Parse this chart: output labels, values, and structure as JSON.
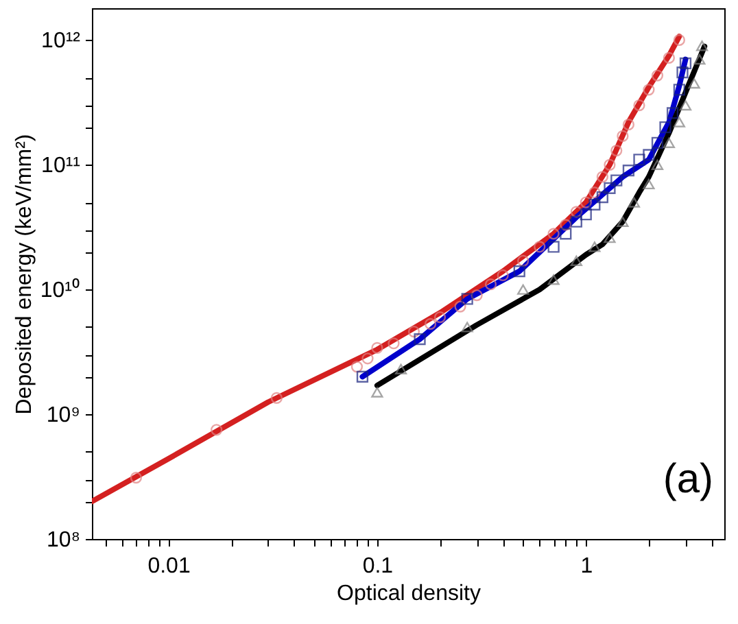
{
  "chart_data": {
    "type": "scatter",
    "xlabel": "Optical density",
    "ylabel": "Deposited energy (keV/mm²)",
    "log": "xy",
    "grid": false,
    "xlim": [
      0.0043,
      4.6
    ],
    "ylim": [
      100000000.0,
      1800000000000.0
    ],
    "xticks": [
      {
        "value": 0.005,
        "label": null
      },
      {
        "value": 0.006,
        "label": null
      },
      {
        "value": 0.007,
        "label": null
      },
      {
        "value": 0.008,
        "label": null
      },
      {
        "value": 0.009,
        "label": null
      },
      {
        "value": 0.01,
        "label": "0.01"
      },
      {
        "value": 0.02,
        "label": null
      },
      {
        "value": 0.03,
        "label": null
      },
      {
        "value": 0.04,
        "label": null
      },
      {
        "value": 0.05,
        "label": null
      },
      {
        "value": 0.06,
        "label": null
      },
      {
        "value": 0.07,
        "label": null
      },
      {
        "value": 0.08,
        "label": null
      },
      {
        "value": 0.09,
        "label": null
      },
      {
        "value": 0.1,
        "label": "0.1"
      },
      {
        "value": 0.2,
        "label": null
      },
      {
        "value": 0.3,
        "label": null
      },
      {
        "value": 0.4,
        "label": null
      },
      {
        "value": 0.5,
        "label": null
      },
      {
        "value": 0.6,
        "label": null
      },
      {
        "value": 0.7,
        "label": null
      },
      {
        "value": 0.8,
        "label": null
      },
      {
        "value": 0.9,
        "label": null
      },
      {
        "value": 1,
        "label": "1"
      },
      {
        "value": 2,
        "label": null
      },
      {
        "value": 3,
        "label": null
      },
      {
        "value": 4,
        "label": null
      }
    ],
    "yticks": [
      {
        "value": 100000000.0,
        "label": "10⁸"
      },
      {
        "value": 200000000.0,
        "label": null
      },
      {
        "value": 300000000.0,
        "label": null
      },
      {
        "value": 500000000.0,
        "label": null
      },
      {
        "value": 1000000000.0,
        "label": "10⁹"
      },
      {
        "value": 2000000000.0,
        "label": null
      },
      {
        "value": 3000000000.0,
        "label": null
      },
      {
        "value": 5000000000.0,
        "label": null
      },
      {
        "value": 10000000000.0,
        "label": "10¹⁰"
      },
      {
        "value": 20000000000.0,
        "label": null
      },
      {
        "value": 30000000000.0,
        "label": null
      },
      {
        "value": 50000000000.0,
        "label": null
      },
      {
        "value": 100000000000.0,
        "label": "10¹¹"
      },
      {
        "value": 200000000000.0,
        "label": null
      },
      {
        "value": 300000000000.0,
        "label": null
      },
      {
        "value": 500000000000.0,
        "label": null
      },
      {
        "value": 1000000000000.0,
        "label": "10¹²"
      }
    ],
    "annotations": [
      "(a)"
    ],
    "series": [
      {
        "type": "scatter",
        "marker": "circle",
        "color": "#e08080",
        "x": [
          0.007,
          0.017,
          0.033,
          0.08,
          0.09,
          0.1,
          0.12,
          0.15,
          0.18,
          0.2,
          0.25,
          0.3,
          0.35,
          0.4,
          0.5,
          0.6,
          0.7,
          0.8,
          0.9,
          1.0,
          1.1,
          1.2,
          1.3,
          1.4,
          1.5,
          1.6,
          1.8,
          2.0,
          2.2,
          2.5,
          2.8
        ],
        "values": [
          310000000.0,
          750000000.0,
          1350000000.0,
          2400000000.0,
          2800000000.0,
          3400000000.0,
          3700000000.0,
          4600000000.0,
          5300000000.0,
          6000000000.0,
          7300000000.0,
          9000000000.0,
          11000000000.0,
          13000000000.0,
          17000000000.0,
          22000000000.0,
          28000000000.0,
          33000000000.0,
          42000000000.0,
          50000000000.0,
          60000000000.0,
          80000000000.0,
          100000000000.0,
          130000000000.0,
          170000000000.0,
          210000000000.0,
          300000000000.0,
          400000000000.0,
          520000000000.0,
          720000000000.0,
          1000000000000.0
        ]
      },
      {
        "type": "line",
        "marker": "none",
        "color": "#d42020",
        "x": [
          0.0043,
          0.01,
          0.03,
          0.1,
          0.2,
          0.4,
          0.7,
          1,
          1.3,
          1.6,
          2,
          2.5,
          2.8
        ],
        "values": [
          200000000.0,
          440000000.0,
          1250000000.0,
          3300000000.0,
          6500000000.0,
          14000000000.0,
          28000000000.0,
          50000000000.0,
          100000000000.0,
          220000000000.0,
          420000000000.0,
          750000000000.0,
          1070000000000.0
        ]
      },
      {
        "type": "scatter",
        "marker": "square",
        "color": "#1a237e",
        "x": [
          0.085,
          0.16,
          0.27,
          0.48,
          0.7,
          0.8,
          0.9,
          1.0,
          1.1,
          1.2,
          1.3,
          1.4,
          1.6,
          1.8,
          2.0,
          2.2,
          2.4,
          2.6,
          2.8,
          2.9,
          3.0
        ],
        "values": [
          2000000000.0,
          4000000000.0,
          8400000000.0,
          14000000000.0,
          22000000000.0,
          28000000000.0,
          35000000000.0,
          40000000000.0,
          48000000000.0,
          55000000000.0,
          65000000000.0,
          75000000000.0,
          90000000000.0,
          110000000000.0,
          120000000000.0,
          150000000000.0,
          200000000000.0,
          260000000000.0,
          400000000000.0,
          550000000000.0,
          650000000000.0
        ]
      },
      {
        "type": "line",
        "marker": "none",
        "color": "#0000cc",
        "x": [
          0.085,
          0.16,
          0.27,
          0.48,
          0.9,
          1.5,
          2,
          2.5,
          2.8,
          3.0
        ],
        "values": [
          2000000000.0,
          4000000000.0,
          8400000000.0,
          14000000000.0,
          38000000000.0,
          80000000000.0,
          110000000000.0,
          220000000000.0,
          430000000000.0,
          700000000000.0
        ]
      },
      {
        "type": "scatter",
        "marker": "triangle",
        "color": "#808080",
        "x": [
          0.1,
          0.13,
          0.27,
          0.5,
          0.7,
          0.9,
          1.1,
          1.3,
          1.5,
          1.7,
          2.0,
          2.2,
          2.5,
          2.8,
          3.0,
          3.3,
          3.5,
          3.6
        ],
        "values": [
          1500000000.0,
          2300000000.0,
          5000000000.0,
          10000000000.0,
          12000000000.0,
          17000000000.0,
          22000000000.0,
          26000000000.0,
          35000000000.0,
          50000000000.0,
          70000000000.0,
          100000000000.0,
          150000000000.0,
          220000000000.0,
          300000000000.0,
          450000000000.0,
          700000000000.0,
          900000000000.0
        ]
      },
      {
        "type": "line",
        "marker": "none",
        "color": "#000000",
        "x": [
          0.1,
          0.3,
          0.6,
          1,
          1.2,
          1.5,
          1.8,
          2.0,
          2.5,
          3,
          3.7
        ],
        "values": [
          1700000000.0,
          5200000000.0,
          10000000000.0,
          19000000000.0,
          23000000000.0,
          35000000000.0,
          60000000000.0,
          80000000000.0,
          180000000000.0,
          380000000000.0,
          890000000000.0
        ]
      }
    ]
  }
}
